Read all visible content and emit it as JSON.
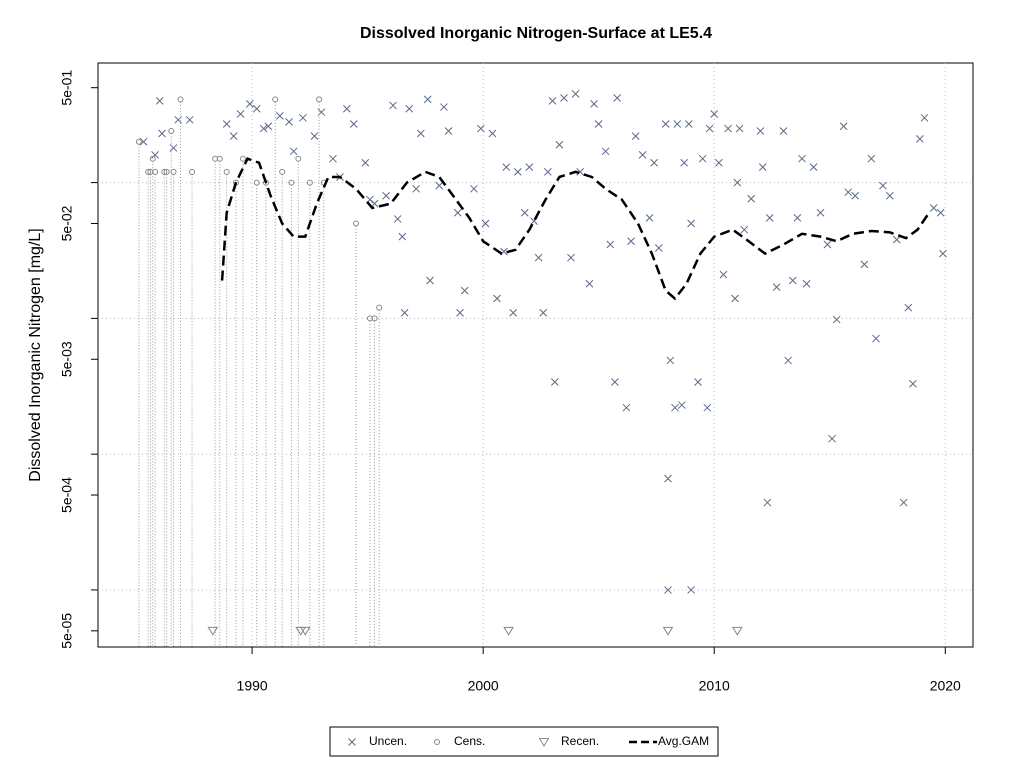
{
  "chart_data": {
    "type": "scatter",
    "title": "Dissolved Inorganic Nitrogen-Surface at LE5.4",
    "y_label": "Dissolved Inorganic Nitrogen [mg/L]",
    "log_y": true,
    "xlim": [
      1983.33,
      2021.2
    ],
    "ylim": [
      3.8e-05,
      0.76
    ],
    "xticks": [
      1990,
      2000,
      2010,
      2020
    ],
    "yticks": [
      {
        "value": 0.5,
        "label": "5e-01"
      },
      {
        "value": 0.05,
        "label": "5e-02"
      },
      {
        "value": 0.005,
        "label": "5e-03"
      },
      {
        "value": 0.0005,
        "label": "5e-04"
      },
      {
        "value": 5e-05,
        "label": "5e-05"
      }
    ],
    "ygrid": [
      0.1,
      0.01,
      0.001,
      0.0001
    ],
    "legend": "bottom",
    "series": [
      {
        "name": "Uncen.",
        "marker": "x",
        "color": "#5a6a8a",
        "x": [
          1985.3,
          1985.8,
          1986.0,
          1986.1,
          1986.6,
          1986.8,
          1987.3,
          1988.9,
          1989.2,
          1989.5,
          1989.9,
          1990.2,
          1990.5,
          1990.7,
          1991.2,
          1991.6,
          1991.8,
          1992.2,
          1992.7,
          1993.0,
          1993.5,
          1993.8,
          1994.1,
          1994.4,
          1994.9,
          1995.1,
          1995.3,
          1995.8,
          1996.1,
          1996.3,
          1996.5,
          1996.6,
          1996.8,
          1997.1,
          1997.3,
          1997.6,
          1997.7,
          1998.1,
          1998.3,
          1998.5,
          1998.9,
          1999.0,
          1999.2,
          1999.6,
          1999.9,
          2000.1,
          2000.4,
          2000.6,
          2000.9,
          2001.0,
          2001.3,
          2001.5,
          2001.8,
          2002.0,
          2002.2,
          2002.4,
          2002.6,
          2002.8,
          2003.0,
          2003.1,
          2003.3,
          2003.5,
          2003.8,
          2004.0,
          2004.2,
          2004.6,
          2004.8,
          2005.0,
          2005.3,
          2005.5,
          2005.7,
          2005.8,
          2006.2,
          2006.4,
          2006.6,
          2006.9,
          2007.2,
          2007.4,
          2007.6,
          2007.9,
          2008.0,
          2008.0,
          2008.1,
          2008.3,
          2008.4,
          2008.6,
          2008.7,
          2008.9,
          2009.0,
          2009.0,
          2009.3,
          2009.5,
          2009.7,
          2009.8,
          2010.0,
          2010.2,
          2010.4,
          2010.6,
          2010.9,
          2011.0,
          2011.1,
          2011.3,
          2011.6,
          2012.0,
          2012.1,
          2012.3,
          2012.4,
          2012.7,
          2013.0,
          2013.2,
          2013.4,
          2013.6,
          2013.8,
          2014.0,
          2014.3,
          2014.6,
          2014.9,
          2015.1,
          2015.3,
          2015.6,
          2015.8,
          2016.1,
          2016.5,
          2016.8,
          2017.0,
          2017.3,
          2017.6,
          2017.9,
          2018.2,
          2018.4,
          2018.6,
          2018.9,
          2019.1,
          2019.5,
          2019.8,
          2019.9
        ],
        "values": [
          0.2,
          0.16,
          0.4,
          0.23,
          0.18,
          0.29,
          0.29,
          0.27,
          0.22,
          0.32,
          0.38,
          0.35,
          0.25,
          0.26,
          0.31,
          0.28,
          0.17,
          0.3,
          0.22,
          0.33,
          0.15,
          0.11,
          0.35,
          0.27,
          0.14,
          0.075,
          0.07,
          0.08,
          0.37,
          0.054,
          0.04,
          0.011,
          0.35,
          0.09,
          0.23,
          0.41,
          0.019,
          0.095,
          0.36,
          0.24,
          0.06,
          0.011,
          0.016,
          0.09,
          0.25,
          0.05,
          0.23,
          0.014,
          0.031,
          0.13,
          0.011,
          0.12,
          0.06,
          0.13,
          0.052,
          0.028,
          0.011,
          0.12,
          0.4,
          0.0034,
          0.19,
          0.42,
          0.028,
          0.45,
          0.12,
          0.018,
          0.38,
          0.27,
          0.17,
          0.035,
          0.0034,
          0.42,
          0.0022,
          0.037,
          0.22,
          0.16,
          0.055,
          0.14,
          0.033,
          0.27,
          0.00066,
          0.0001,
          0.0049,
          0.0022,
          0.27,
          0.0023,
          0.14,
          0.27,
          0.05,
          0.0001,
          0.0034,
          0.15,
          0.0022,
          0.25,
          0.32,
          0.14,
          0.021,
          0.25,
          0.014,
          0.1,
          0.25,
          0.045,
          0.076,
          0.24,
          0.13,
          0.00044,
          0.055,
          0.017,
          0.24,
          0.0049,
          0.019,
          0.055,
          0.15,
          0.018,
          0.13,
          0.06,
          0.035,
          0.0013,
          0.0098,
          0.26,
          0.085,
          0.08,
          0.025,
          0.15,
          0.0071,
          0.095,
          0.08,
          0.038,
          0.00044,
          0.012,
          0.0033,
          0.21,
          0.3,
          0.065,
          0.06,
          0.03
        ]
      },
      {
        "name": "Cens.",
        "marker": "o",
        "color": "#888888",
        "x": [
          1985.1,
          1985.5,
          1985.6,
          1985.7,
          1985.8,
          1986.2,
          1986.3,
          1986.5,
          1986.6,
          1986.9,
          1987.4,
          1988.4,
          1988.6,
          1988.9,
          1989.3,
          1989.6,
          1990.2,
          1990.6,
          1991.0,
          1991.3,
          1991.7,
          1992.0,
          1992.5,
          1992.9,
          1993.1,
          1994.5,
          1995.1,
          1995.3,
          1995.5
        ],
        "values": [
          0.2,
          0.12,
          0.12,
          0.15,
          0.12,
          0.12,
          0.12,
          0.24,
          0.12,
          0.41,
          0.12,
          0.15,
          0.15,
          0.12,
          0.1,
          0.15,
          0.1,
          0.1,
          0.41,
          0.12,
          0.1,
          0.15,
          0.1,
          0.41,
          0.1,
          0.05,
          0.01,
          0.01,
          0.012
        ]
      },
      {
        "name": "Recen.",
        "marker": "triangle",
        "color": "#888888",
        "x": [
          1988.3,
          1992.1,
          1992.3,
          2001.1,
          2008.0,
          2011.0
        ],
        "values": [
          5e-05,
          5e-05,
          5e-05,
          5e-05,
          5e-05,
          5e-05
        ]
      },
      {
        "name": "Avg.GAM",
        "marker": "dashed-line",
        "color": "#000000",
        "x": [
          1988.7,
          1988.9,
          1989.3,
          1989.8,
          1990.3,
          1990.8,
          1991.3,
          1991.8,
          1992.3,
          1992.8,
          1993.3,
          1993.8,
          1994.5,
          1995.2,
          1996.0,
          1996.7,
          1997.5,
          1998.1,
          1998.7,
          1999.4,
          2000.0,
          2000.8,
          2001.4,
          2002.0,
          2002.7,
          2003.3,
          2004.0,
          2004.7,
          2005.3,
          2006.0,
          2006.7,
          2007.3,
          2007.9,
          2008.3,
          2008.8,
          2009.4,
          2010.0,
          2010.8,
          2011.4,
          2012.2,
          2013.0,
          2013.8,
          2014.6,
          2015.3,
          2016.0,
          2016.8,
          2017.6,
          2018.3,
          2018.8,
          2019.3
        ],
        "values": [
          0.019,
          0.06,
          0.1,
          0.15,
          0.14,
          0.08,
          0.05,
          0.04,
          0.04,
          0.07,
          0.11,
          0.11,
          0.09,
          0.065,
          0.07,
          0.1,
          0.12,
          0.11,
          0.08,
          0.055,
          0.037,
          0.03,
          0.032,
          0.045,
          0.075,
          0.11,
          0.12,
          0.11,
          0.09,
          0.075,
          0.05,
          0.03,
          0.016,
          0.014,
          0.018,
          0.03,
          0.04,
          0.045,
          0.038,
          0.03,
          0.035,
          0.042,
          0.04,
          0.037,
          0.042,
          0.044,
          0.043,
          0.039,
          0.045,
          0.06
        ]
      }
    ]
  }
}
